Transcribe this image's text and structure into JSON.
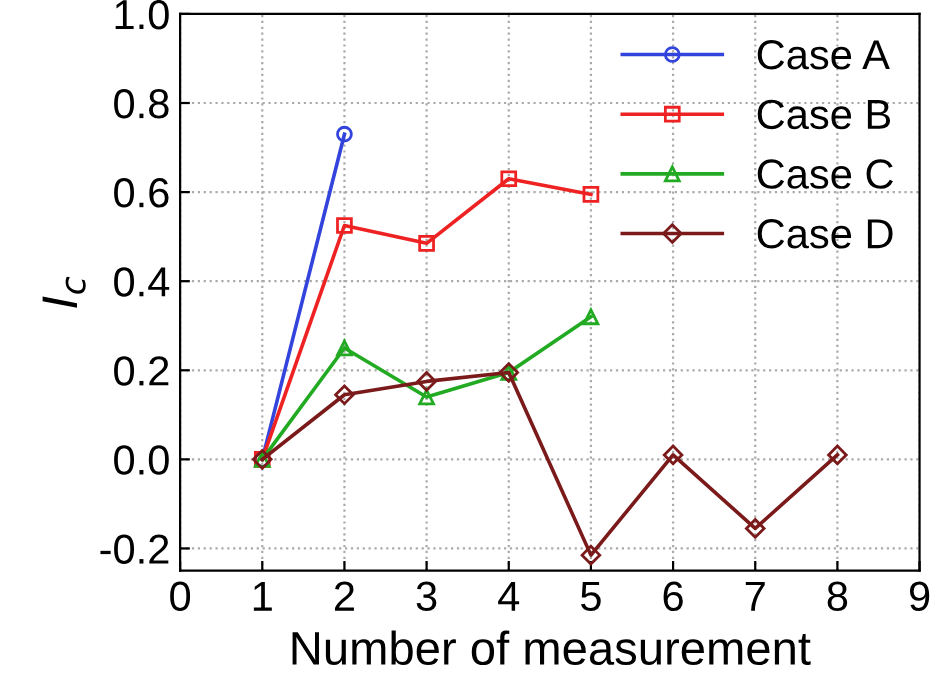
{
  "chart_data": {
    "type": "line",
    "xlabel": "Number of measurement",
    "ylabel": "I$_{c}$",
    "xlim": [
      0,
      9
    ],
    "xticks": [
      0,
      1,
      2,
      3,
      4,
      5,
      6,
      7,
      8,
      9
    ],
    "ylim": [
      -0.25,
      1.0
    ],
    "yticks": [
      {
        "value": -0.2,
        "label": "-0.2"
      },
      {
        "value": 0.0,
        "label": "0.0"
      },
      {
        "value": 0.2,
        "label": "0.2"
      },
      {
        "value": 0.4,
        "label": "0.4"
      },
      {
        "value": 0.6,
        "label": "0.6"
      },
      {
        "value": 0.8,
        "label": "0.8"
      },
      {
        "value": 1.0,
        "label": "1.0"
      }
    ],
    "grid": true,
    "legend": "top right",
    "line_style": "solid",
    "series": [
      {
        "name": "Case A",
        "color": "#3344dd",
        "marker": "circle",
        "x": [
          1,
          2
        ],
        "values": [
          0,
          0.73
        ]
      },
      {
        "name": "Case B",
        "color": "#ee2222",
        "marker": "square",
        "x": [
          1,
          2,
          3,
          4,
          5
        ],
        "values": [
          0,
          0.525,
          0.485,
          0.63,
          0.595
        ]
      },
      {
        "name": "Case C",
        "color": "#22aa22",
        "marker": "triangle",
        "x": [
          1,
          2,
          3,
          4,
          5
        ],
        "values": [
          0,
          0.25,
          0.14,
          0.195,
          0.32
        ]
      },
      {
        "name": "Case D",
        "color": "#7a1a1a",
        "marker": "diamond",
        "x": [
          1,
          2,
          3,
          4,
          5,
          6,
          7,
          8
        ],
        "values": [
          0,
          0.145,
          0.175,
          0.195,
          -0.215,
          0.01,
          -0.155,
          0.01
        ]
      }
    ]
  }
}
